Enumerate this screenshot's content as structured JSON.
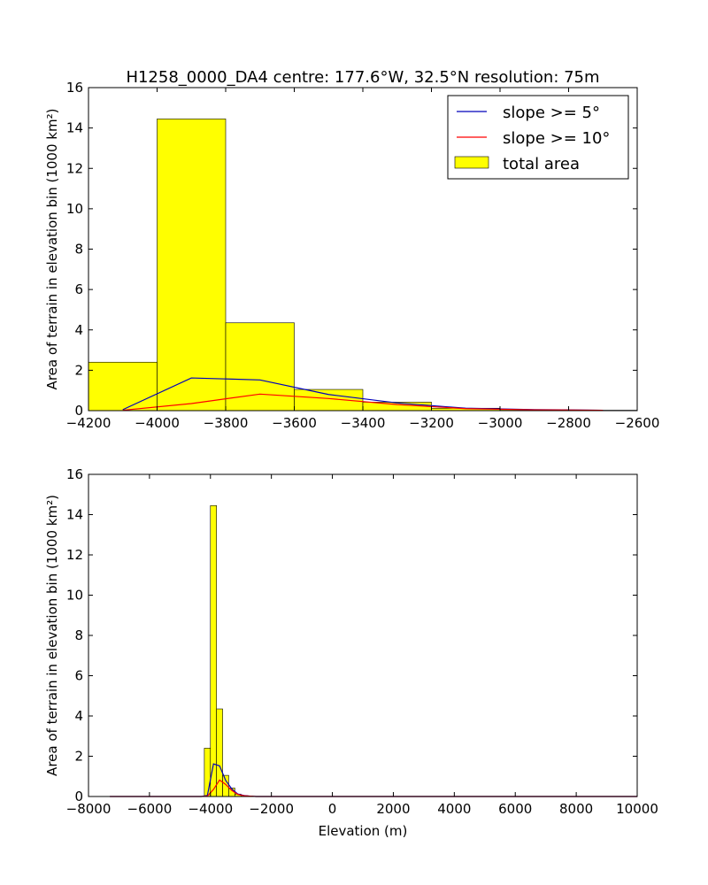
{
  "title": "H1258_0000_DA4    centre: 177.6°W, 32.5°N   resolution: 75m",
  "colors": {
    "total_area": "#ffff00",
    "slope5": "#0000bb",
    "slope10": "#ff0000",
    "bar_edge": "#000000"
  },
  "chart_data": [
    {
      "type": "bar",
      "title": "H1258_0000_DA4    centre: 177.6°W, 32.5°N   resolution: 75m",
      "xlabel": "",
      "ylabel": "Area of terrain in elevation bin (1000 km²)",
      "xlim": [
        -4200,
        -2600
      ],
      "ylim": [
        0,
        16
      ],
      "xticks": [
        -4200,
        -4000,
        -3800,
        -3600,
        -3400,
        -3200,
        -3000,
        -2800,
        -2600
      ],
      "xtick_labels": [
        "−4200",
        "−4000",
        "−3800",
        "−3600",
        "−3400",
        "−3200",
        "−3000",
        "−2800",
        "−2600"
      ],
      "yticks": [
        0,
        2,
        4,
        6,
        8,
        10,
        12,
        14,
        16
      ],
      "ytick_labels": [
        "0",
        "2",
        "4",
        "6",
        "8",
        "10",
        "12",
        "14",
        "16"
      ],
      "bin_edges": [
        -4200,
        -4000,
        -3800,
        -3600,
        -3400,
        -3200,
        -3000,
        -2800,
        -2600
      ],
      "total_area": [
        2.4,
        14.45,
        4.35,
        1.05,
        0.42,
        0.12,
        0.05,
        0.02
      ],
      "series": [
        {
          "name": "slope >= 5°",
          "color": "#0000bb",
          "x": [
            -4100,
            -3900,
            -3700,
            -3500,
            -3300,
            -3100,
            -2900,
            -2700
          ],
          "y": [
            0.05,
            1.62,
            1.52,
            0.8,
            0.38,
            0.12,
            0.05,
            0.02
          ]
        },
        {
          "name": "slope >= 10°",
          "color": "#ff0000",
          "x": [
            -4100,
            -3900,
            -3700,
            -3500,
            -3300,
            -3100,
            -2900,
            -2700
          ],
          "y": [
            0.02,
            0.35,
            0.82,
            0.6,
            0.3,
            0.1,
            0.04,
            0.02
          ]
        }
      ],
      "legend": {
        "placement": "top-right",
        "entries": [
          "slope >= 5°",
          "slope >= 10°",
          "total area"
        ]
      },
      "grid": false
    },
    {
      "type": "bar",
      "xlabel": "Elevation (m)",
      "ylabel": "Area of terrain in elevation bin (1000 km²)",
      "xlim": [
        -8000,
        10000
      ],
      "ylim": [
        0,
        16
      ],
      "xticks": [
        -8000,
        -6000,
        -4000,
        -2000,
        0,
        2000,
        4000,
        6000,
        8000,
        10000
      ],
      "xtick_labels": [
        "−8000",
        "−6000",
        "−4000",
        "−2000",
        "0",
        "2000",
        "4000",
        "6000",
        "8000",
        "10000"
      ],
      "yticks": [
        0,
        2,
        4,
        6,
        8,
        10,
        12,
        14,
        16
      ],
      "ytick_labels": [
        "0",
        "2",
        "4",
        "6",
        "8",
        "10",
        "12",
        "14",
        "16"
      ],
      "bin_edges": [
        -4200,
        -4000,
        -3800,
        -3600,
        -3400,
        -3200,
        -3000,
        -2800,
        -2600
      ],
      "total_area": [
        2.4,
        14.45,
        4.35,
        1.05,
        0.42,
        0.12,
        0.05,
        0.02
      ],
      "series": [
        {
          "name": "slope >= 5°",
          "color": "#0000bb",
          "x": [
            -7300,
            -4300,
            -4100,
            -3900,
            -3700,
            -3500,
            -3300,
            -3100,
            -2900,
            -2700,
            -2500,
            10000
          ],
          "y": [
            0,
            0,
            0.05,
            1.62,
            1.52,
            0.8,
            0.38,
            0.12,
            0.05,
            0.02,
            0,
            0
          ]
        },
        {
          "name": "slope >= 10°",
          "color": "#ff0000",
          "x": [
            -7300,
            -4300,
            -4100,
            -3900,
            -3700,
            -3500,
            -3300,
            -3100,
            -2900,
            -2700,
            -2500,
            10000
          ],
          "y": [
            0,
            0,
            0.02,
            0.35,
            0.82,
            0.6,
            0.3,
            0.1,
            0.04,
            0.02,
            0,
            0
          ]
        }
      ],
      "grid": false
    }
  ]
}
